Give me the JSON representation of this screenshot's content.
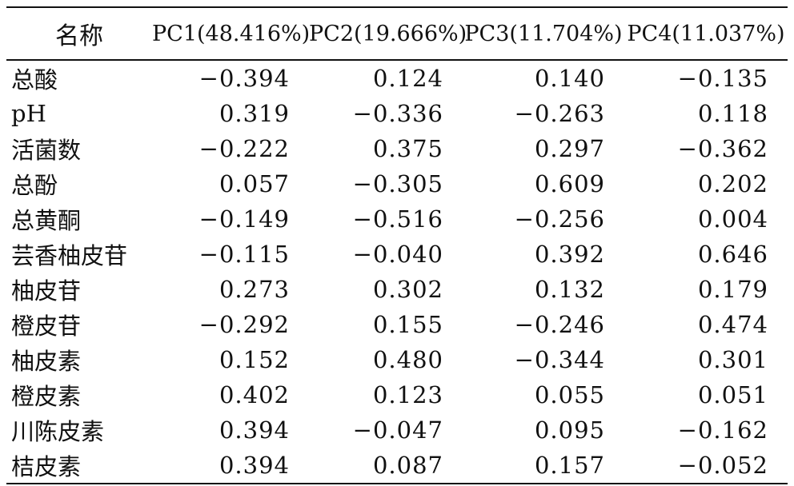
{
  "table": {
    "headers": [
      "名称",
      "PC1(48.416%)",
      "PC2(19.666%)",
      "PC3(11.704%)",
      "PC4(11.037%)"
    ],
    "rows": [
      {
        "name": "总酸",
        "values": [
          "−0.394",
          "0.124",
          "0.140",
          "−0.135"
        ]
      },
      {
        "name": "pH",
        "values": [
          "0.319",
          "−0.336",
          "−0.263",
          "0.118"
        ]
      },
      {
        "name": "活菌数",
        "values": [
          "−0.222",
          "0.375",
          "0.297",
          "−0.362"
        ]
      },
      {
        "name": "总酚",
        "values": [
          "0.057",
          "−0.305",
          "0.609",
          "0.202"
        ]
      },
      {
        "name": "总黄酮",
        "values": [
          "−0.149",
          "−0.516",
          "−0.256",
          "0.004"
        ]
      },
      {
        "name": "芸香柚皮苷",
        "values": [
          "−0.115",
          "−0.040",
          "0.392",
          "0.646"
        ]
      },
      {
        "name": "柚皮苷",
        "values": [
          "0.273",
          "0.302",
          "0.132",
          "0.179"
        ]
      },
      {
        "name": "橙皮苷",
        "values": [
          "−0.292",
          "0.155",
          "−0.246",
          "0.474"
        ]
      },
      {
        "name": "柚皮素",
        "values": [
          "0.152",
          "0.480",
          "−0.344",
          "0.301"
        ]
      },
      {
        "name": "橙皮素",
        "values": [
          "0.402",
          "0.123",
          "0.055",
          "0.051"
        ]
      },
      {
        "name": "川陈皮素",
        "values": [
          "0.394",
          "−0.047",
          "0.095",
          "−0.162"
        ]
      },
      {
        "name": "桔皮素",
        "values": [
          "0.394",
          "0.087",
          "0.157",
          "−0.052"
        ]
      }
    ]
  }
}
